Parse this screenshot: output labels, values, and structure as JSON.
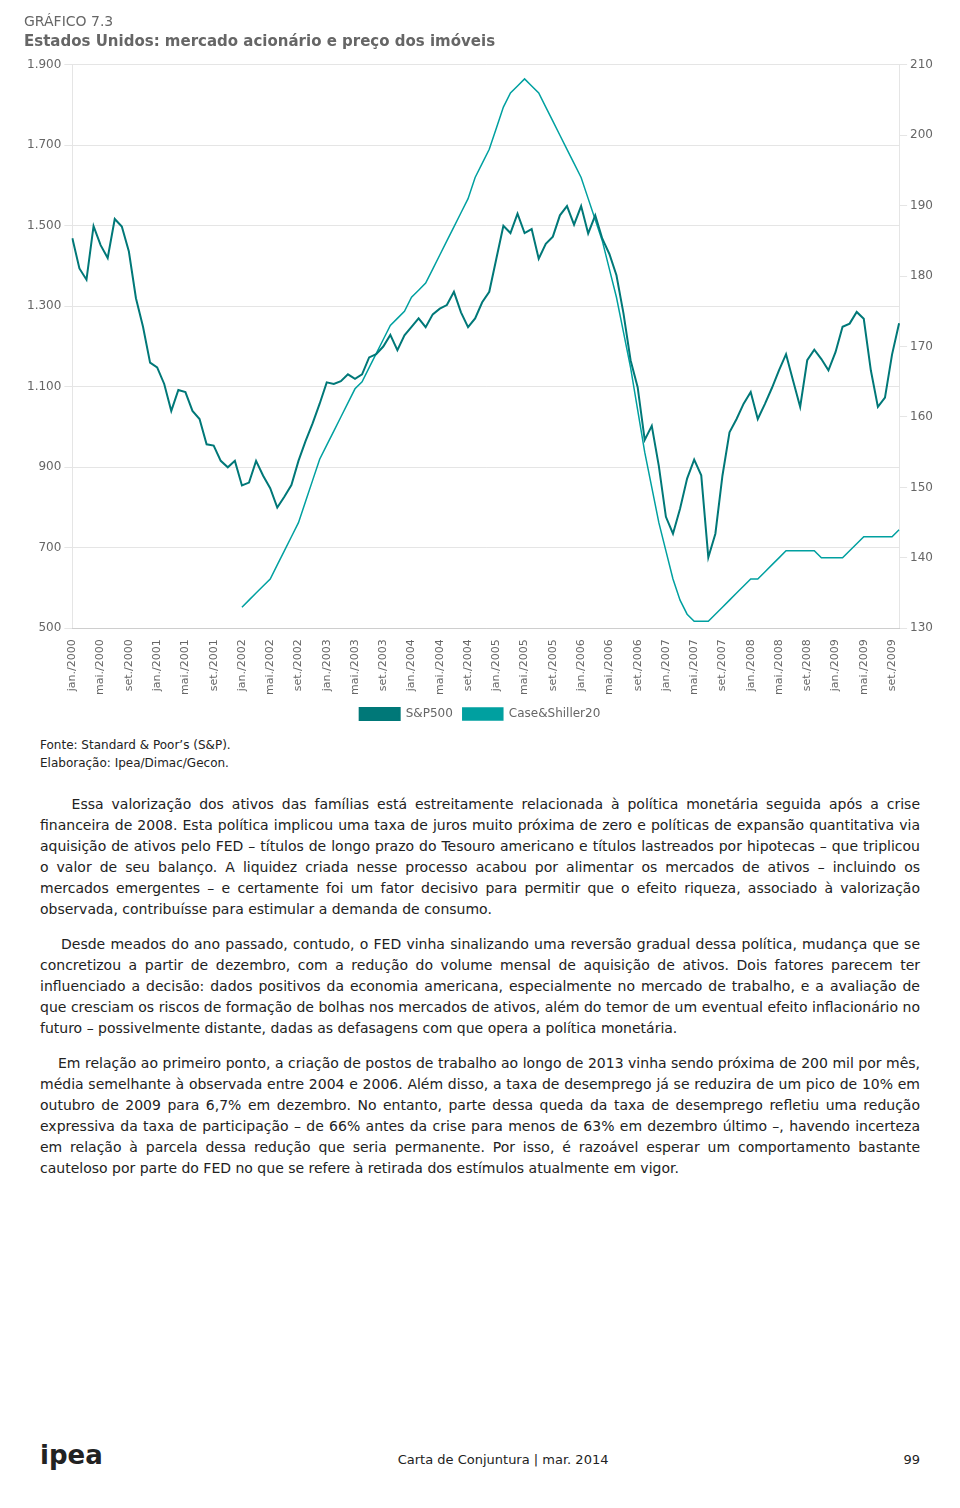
{
  "chart_data": {
    "type": "line",
    "title": "GRÁFICO 7.3",
    "subtitle": "Estados Unidos: mercado acionário e preço dos imóveis",
    "categories": [
      "jan./2000",
      null,
      null,
      null,
      "mai./2000",
      null,
      null,
      null,
      "set./2000",
      null,
      null,
      null,
      "jan./2001",
      null,
      null,
      null,
      "mai./2001",
      null,
      null,
      null,
      "set./2001",
      null,
      null,
      null,
      "jan./2002",
      null,
      null,
      null,
      "mai./2002",
      null,
      null,
      null,
      "set./2002",
      null,
      null,
      null,
      "jan./2003",
      null,
      null,
      null,
      "mai./2003",
      null,
      null,
      null,
      "set./2003",
      null,
      null,
      null,
      "jan./2004",
      null,
      null,
      null,
      "mai./2004",
      null,
      null,
      null,
      "set./2004",
      null,
      null,
      null,
      "jan./2005",
      null,
      null,
      null,
      "mai./2005",
      null,
      null,
      null,
      "set./2005",
      null,
      null,
      null,
      "jan./2006",
      null,
      null,
      null,
      "mai./2006",
      null,
      null,
      null,
      "set./2006",
      null,
      null,
      null,
      "jan./2007",
      null,
      null,
      null,
      "mai./2007",
      null,
      null,
      null,
      "set./2007",
      null,
      null,
      null,
      "jan./2008",
      null,
      null,
      null,
      "mai./2008",
      null,
      null,
      null,
      "set./2008",
      null,
      null,
      null,
      "jan./2009",
      null,
      null,
      null,
      "mai./2009",
      null,
      null,
      null,
      "set./2009",
      null
    ],
    "series": [
      {
        "name": "S&P500",
        "color": "#007878",
        "values": [
          1469,
          1394,
          1366,
          1499,
          1452,
          1420,
          1517,
          1498,
          1436,
          1320,
          1249,
          1160,
          1148,
          1107,
          1040,
          1092,
          1087,
          1040,
          1020,
          957,
          954,
          916,
          900,
          916,
          855,
          862,
          916,
          879,
          848,
          800,
          827,
          856,
          916,
          965,
          1009,
          1058,
          1111,
          1107,
          1114,
          1131,
          1120,
          1131,
          1173,
          1181,
          1200,
          1229,
          1191,
          1228,
          1249,
          1270,
          1248,
          1280,
          1294,
          1303,
          1336,
          1285,
          1248,
          1270,
          1310,
          1336,
          1418,
          1500,
          1482,
          1530,
          1482,
          1492,
          1418,
          1455,
          1473,
          1526,
          1549,
          1503,
          1549,
          1481,
          1526,
          1468,
          1430,
          1377,
          1282,
          1166,
          1099,
          968,
          1003,
          903,
          777,
          735,
          797,
          872,
          919,
          880,
          676,
          735,
          879,
          987,
          1020,
          1058,
          1087,
          1020,
          1057,
          1097,
          1141,
          1181,
          1115,
          1050,
          1166,
          1192,
          1169,
          1141,
          1186,
          1249,
          1257,
          1286,
          1269,
          1141,
          1050,
          1073,
          1180,
          1258
        ]
      },
      {
        "name": "Case&Shiller20",
        "color": "#00a0a0",
        "axis": "y2",
        "values": [
          null,
          null,
          null,
          null,
          null,
          null,
          null,
          null,
          null,
          null,
          null,
          null,
          null,
          null,
          null,
          null,
          null,
          null,
          null,
          null,
          null,
          null,
          null,
          null,
          133,
          134,
          135,
          136,
          137,
          139,
          141,
          143,
          145,
          148,
          151,
          154,
          156,
          158,
          160,
          162,
          164,
          165,
          167,
          169,
          171,
          173,
          174,
          175,
          177,
          178,
          179,
          181,
          183,
          185,
          187,
          189,
          191,
          194,
          196,
          198,
          201,
          204,
          206,
          207,
          208,
          207,
          206,
          204,
          202,
          200,
          198,
          196,
          194,
          191,
          188,
          185,
          181,
          177,
          172,
          167,
          161,
          155,
          150,
          145,
          141,
          137,
          134,
          132,
          131,
          131,
          131,
          132,
          133,
          134,
          135,
          136,
          137,
          137,
          138,
          139,
          140,
          141,
          141,
          141,
          141,
          141,
          140,
          140,
          140,
          140,
          141,
          142,
          143,
          143,
          143,
          143,
          143,
          144
        ]
      }
    ],
    "ylim": [
      500,
      1900
    ],
    "yticks": [
      500,
      700,
      900,
      {
        "value": 1100,
        "label": "1.100"
      },
      {
        "value": 1300,
        "label": "1.300"
      },
      {
        "value": 1500,
        "label": "1.500"
      },
      {
        "value": 1700,
        "label": "1.700"
      },
      {
        "value": 1900,
        "label": "1.900"
      }
    ],
    "y2lim": [
      130,
      210
    ],
    "y2ticks": [
      130,
      140,
      150,
      160,
      170,
      180,
      190,
      200,
      210
    ],
    "grid": true,
    "legend": "bottom",
    "annotations": [
      "Fonte: Standard & Poor’s (S&P).",
      "Elaboração: Ipea/Dimac/Gecon.",
      "    Essa valorização dos ativos das famílias está estreitamente relacionada à política monetária seguida após a crise financeira de 2008. Esta política implicou uma taxa de juros muito próxima de zero e políticas de expansão quantitativa via aquisição de ativos pelo FED – títulos de longo prazo do Tesouro americano e títulos lastreados por hipotecas – que triplicou o valor de seu balanço. A liquidez criada nesse processo acabou por alimentar os mercados de ativos – incluindo os mercados emergentes – e certamente foi um fator decisivo para permitir que o efeito riqueza, associado à valorização observada, contribuísse para estimular a demanda de consumo.",
      "    Desde meados do ano passado, contudo, o FED vinha sinalizando uma reversão gradual dessa política, mudança que se concretizou a partir de dezembro, com a redução do volume mensal de aquisição de ativos. Dois fatores parecem ter influenciado a decisão: dados positivos da economia americana, especialmente no mercado de trabalho, e a avaliação de que cresciam os riscos de formação de bolhas nos mercados de ativos, além do temor de um eventual efeito inflacionário no futuro – possivelmente distante, dadas as defasagens com que opera a política monetária.",
      "    Em relação ao primeiro ponto, a criação de postos de trabalho ao longo de 2013 vinha sendo próxima de 200 mil por mês, média semelhante à observada entre 2004 e 2006. Além disso, a taxa de desemprego já se reduzira de um pico de 10% em outubro de 2009 para 6,7% em dezembro. No entanto, parte dessa queda da taxa de desemprego refletiu uma redução expressiva da taxa de participação – de 66% antes da crise para menos de 63% em dezembro último –, havendo incerteza em relação à parcela dessa redução que seria permanente. Por isso, é razoável esperar um comportamento bastante cauteloso por parte do FED no que se refere à retirada dos estímulos atualmente em vigor.",
      "ipea",
      "Carta de Conjuntura  |  mar. 2014",
      "99"
    ]
  }
}
